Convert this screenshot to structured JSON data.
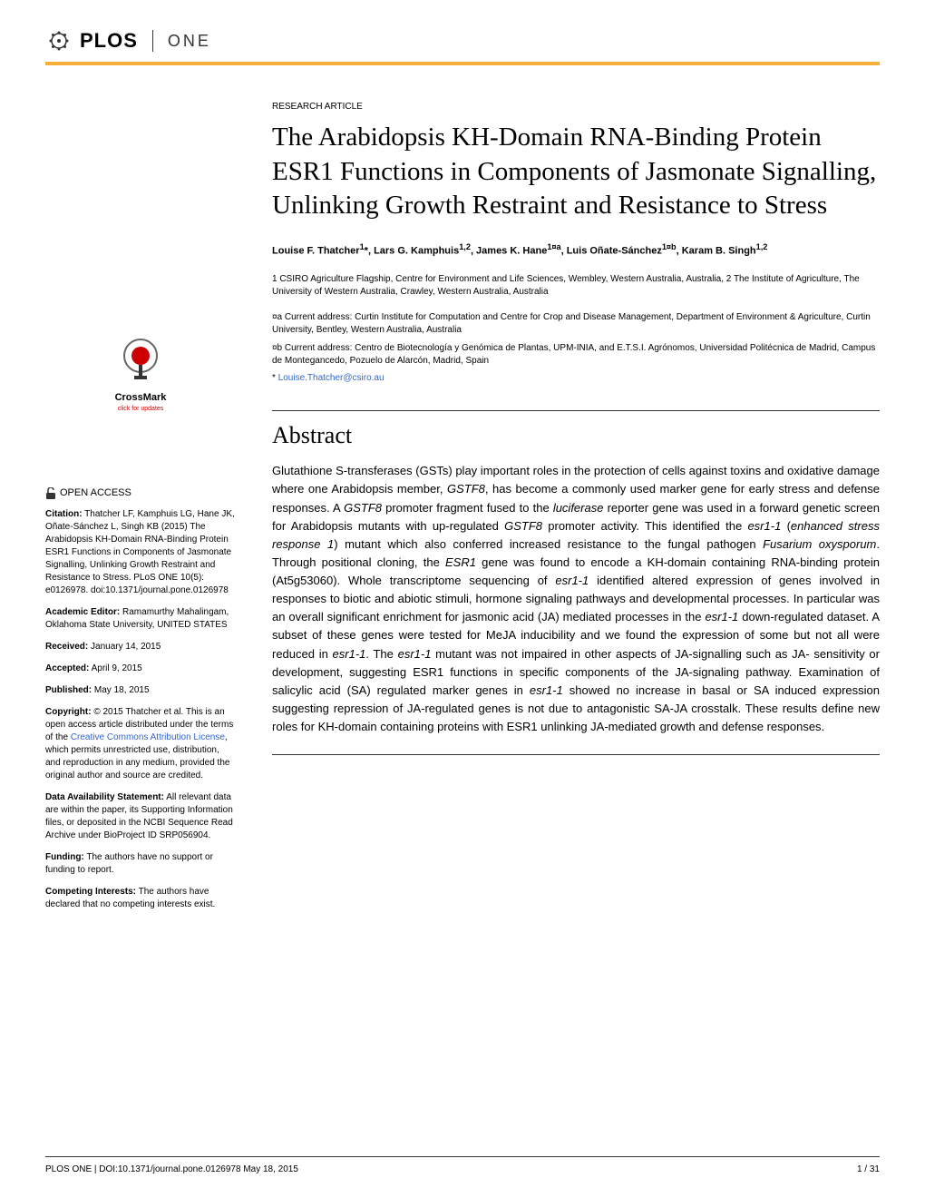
{
  "header": {
    "logo_text": "PLOS",
    "journal": "ONE"
  },
  "article": {
    "type": "RESEARCH ARTICLE",
    "title": "The Arabidopsis KH-Domain RNA-Binding Protein ESR1 Functions in Components of Jasmonate Signalling, Unlinking Growth Restraint and Resistance to Stress",
    "authors_html": "Louise F. Thatcher<sup>1</sup>*, Lars G. Kamphuis<sup>1,2</sup>, James K. Hane<sup>1¤a</sup>, Luis Oñate-Sánchez<sup>1¤b</sup>, Karam B. Singh<sup>1,2</sup>",
    "affiliations": "1 CSIRO Agriculture Flagship, Centre for Environment and Life Sciences, Wembley, Western Australia, Australia, 2 The Institute of Agriculture, The University of Western Australia, Crawley, Western Australia, Australia",
    "current_a": "¤a Current address: Curtin Institute for Computation and Centre for Crop and Disease Management, Department of Environment & Agriculture, Curtin University, Bentley, Western Australia, Australia",
    "current_b": "¤b Current address: Centro de Biotecnología y Genómica de Plantas, UPM-INIA, and E.T.S.I. Agrónomos, Universidad Politécnica de Madrid, Campus de Montegancedo, Pozuelo de Alarcón, Madrid, Spain",
    "corresponding_symbol": "* ",
    "corresponding_email": "Louise.Thatcher@csiro.au"
  },
  "abstract": {
    "heading": "Abstract",
    "body_html": "Glutathione S-transferases (GSTs) play important roles in the protection of cells against toxins and oxidative damage where one Arabidopsis member, <em>GSTF8</em>, has become a commonly used marker gene for early stress and defense responses. A <em>GSTF8</em> promoter fragment fused to the <em>luciferase</em> reporter gene was used in a forward genetic screen for Arabidopsis mutants with up-regulated <em>GSTF8</em> promoter activity. This identified the <em>esr1-1</em> (<em>enhanced stress response 1</em>) mutant which also conferred increased resistance to the fungal pathogen <em>Fusarium oxysporum</em>. Through positional cloning, the <em>ESR1</em> gene was found to encode a KH-domain containing RNA-binding protein (At5g53060). Whole transcriptome sequencing of <em>esr1-1</em> identified altered expression of genes involved in responses to biotic and abiotic stimuli, hormone signaling pathways and developmental processes. In particular was an overall significant enrichment for jasmonic acid (JA) mediated processes in the <em>esr1-1</em> down-regulated dataset. A subset of these genes were tested for MeJA inducibility and we found the expression of some but not all were reduced in <em>esr1-1</em>. The <em>esr1-1</em> mutant was not impaired in other aspects of JA-signalling such as JA- sensitivity or development, suggesting ESR1 functions in specific components of the JA-signaling pathway. Examination of salicylic acid (SA) regulated marker genes in <em>esr1-1</em> showed no increase in basal or SA induced expression suggesting repression of JA-regulated genes is not due to antagonistic SA-JA crosstalk. These results define new roles for KH-domain containing proteins with ESR1 unlinking JA-mediated growth and defense responses."
  },
  "sidebar": {
    "crossmark_text": "CrossMark",
    "crossmark_sub": "click for updates",
    "open_access": "OPEN ACCESS",
    "citation_label": "Citation:",
    "citation": " Thatcher LF, Kamphuis LG, Hane JK, Oñate-Sánchez L, Singh KB (2015) The Arabidopsis KH-Domain RNA-Binding Protein ESR1 Functions in Components of Jasmonate Signalling, Unlinking Growth Restraint and Resistance to Stress. PLoS ONE 10(5): e0126978. doi:10.1371/journal.pone.0126978",
    "editor_label": "Academic Editor:",
    "editor": " Ramamurthy Mahalingam, Oklahoma State University, UNITED STATES",
    "received_label": "Received:",
    "received": " January 14, 2015",
    "accepted_label": "Accepted:",
    "accepted": " April 9, 2015",
    "published_label": "Published:",
    "published": " May 18, 2015",
    "copyright_label": "Copyright:",
    "copyright_pre": " © 2015 Thatcher et al. This is an open access article distributed under the terms of the ",
    "copyright_link": "Creative Commons Attribution License",
    "copyright_post": ", which permits unrestricted use, distribution, and reproduction in any medium, provided the original author and source are credited.",
    "data_label": "Data Availability Statement:",
    "data": " All relevant data are within the paper, its Supporting Information files, or deposited in the NCBI Sequence Read Archive under BioProject ID SRP056904.",
    "funding_label": "Funding:",
    "funding": " The authors have no support or funding to report.",
    "competing_label": "Competing Interests:",
    "competing": " The authors have declared that no competing interests exist."
  },
  "footer": {
    "left": "PLOS ONE | DOI:10.1371/journal.pone.0126978   May 18, 2015",
    "right": "1 / 31"
  },
  "colors": {
    "accent": "#f8af3a",
    "link": "#3366cc",
    "text": "#000000",
    "background": "#ffffff"
  }
}
